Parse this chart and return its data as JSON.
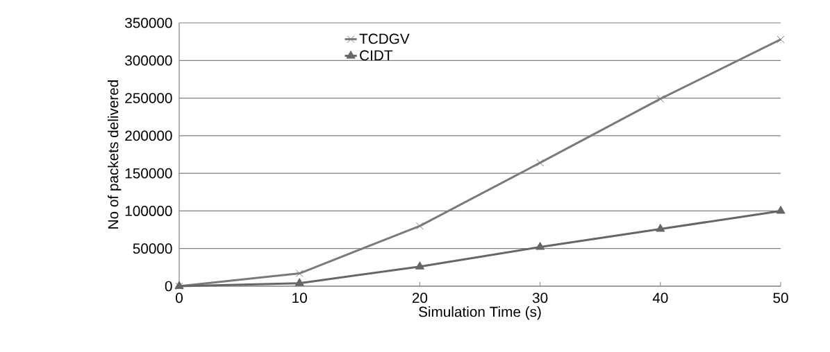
{
  "chart_data": {
    "type": "line",
    "xlabel": "Simulation Time (s)",
    "ylabel": "No of packets delivered",
    "x": [
      0,
      10,
      20,
      30,
      40,
      50
    ],
    "series": [
      {
        "name": "TCDGV",
        "color": "#7a7a7a",
        "marker": "cross",
        "values": [
          0,
          17000,
          80000,
          164000,
          249000,
          328000
        ]
      },
      {
        "name": "CIDT",
        "color": "#666666",
        "marker": "triangle",
        "values": [
          0,
          4000,
          26000,
          52000,
          76000,
          100000
        ]
      }
    ],
    "xlim": [
      0,
      50
    ],
    "xticks": [
      0,
      10,
      20,
      30,
      40,
      50
    ],
    "ylim": [
      0,
      350000
    ],
    "yticks": [
      0,
      50000,
      100000,
      150000,
      200000,
      250000,
      300000,
      350000
    ],
    "grid": "y",
    "legend": "top"
  }
}
